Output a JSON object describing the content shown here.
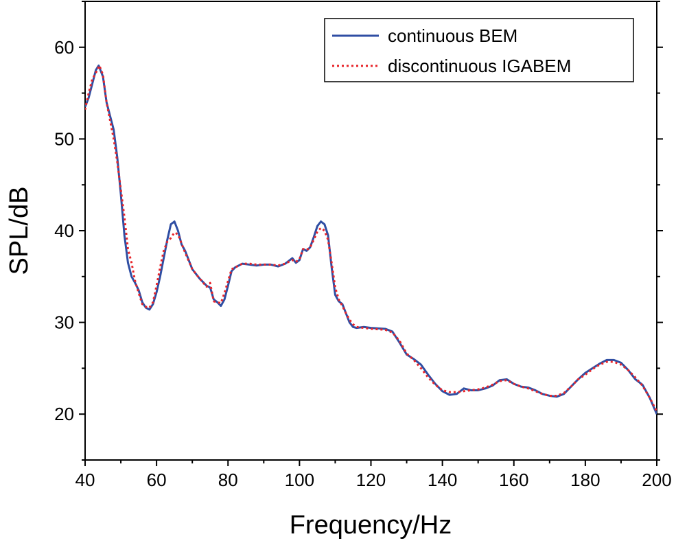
{
  "chart_data": {
    "type": "line",
    "title": "",
    "xlabel": "Frequency/Hz",
    "ylabel": "SPL/dB",
    "xlim": [
      40,
      200
    ],
    "ylim": [
      15,
      65
    ],
    "x_ticks": [
      40,
      60,
      80,
      100,
      120,
      140,
      160,
      180,
      200
    ],
    "y_ticks": [
      20,
      30,
      40,
      50,
      60
    ],
    "legend_position": "top-right",
    "grid": false,
    "series": [
      {
        "name": "continuous BEM",
        "color": "#2f4ea3",
        "style": "solid",
        "points": [
          [
            40,
            53.5
          ],
          [
            41,
            54.5
          ],
          [
            42,
            56
          ],
          [
            43,
            57.5
          ],
          [
            43.8,
            58
          ],
          [
            45,
            56.8
          ],
          [
            46,
            54
          ],
          [
            48,
            51
          ],
          [
            49,
            48
          ],
          [
            50,
            44
          ],
          [
            51,
            39.5
          ],
          [
            52,
            36.5
          ],
          [
            53,
            35
          ],
          [
            54,
            34.3
          ],
          [
            55,
            33.5
          ],
          [
            56,
            32.2
          ],
          [
            57,
            31.6
          ],
          [
            58,
            31.4
          ],
          [
            59,
            32
          ],
          [
            60,
            33.3
          ],
          [
            61,
            35
          ],
          [
            62,
            37
          ],
          [
            63,
            39
          ],
          [
            64,
            40.7
          ],
          [
            65,
            41
          ],
          [
            66,
            40
          ],
          [
            67,
            38.5
          ],
          [
            68,
            37.8
          ],
          [
            69,
            36.8
          ],
          [
            70,
            35.8
          ],
          [
            72,
            34.8
          ],
          [
            74,
            34
          ],
          [
            75,
            33.8
          ],
          [
            76,
            32.5
          ],
          [
            77,
            32.2
          ],
          [
            78,
            31.8
          ],
          [
            79,
            32.5
          ],
          [
            80,
            34
          ],
          [
            81,
            35.6
          ],
          [
            82,
            36
          ],
          [
            84,
            36.4
          ],
          [
            86,
            36.3
          ],
          [
            88,
            36.2
          ],
          [
            90,
            36.3
          ],
          [
            92,
            36.3
          ],
          [
            94,
            36.1
          ],
          [
            96,
            36.4
          ],
          [
            98,
            37
          ],
          [
            99,
            36.5
          ],
          [
            100,
            36.8
          ],
          [
            101,
            38
          ],
          [
            102,
            37.8
          ],
          [
            103,
            38.2
          ],
          [
            104,
            39.3
          ],
          [
            105,
            40.5
          ],
          [
            106,
            41
          ],
          [
            107,
            40.7
          ],
          [
            108,
            39.5
          ],
          [
            109,
            36
          ],
          [
            110,
            33
          ],
          [
            111,
            32.3
          ],
          [
            112,
            32
          ],
          [
            113,
            31
          ],
          [
            114,
            30
          ],
          [
            115,
            29.5
          ],
          [
            116,
            29.4
          ],
          [
            118,
            29.5
          ],
          [
            120,
            29.4
          ],
          [
            124,
            29.3
          ],
          [
            126,
            29
          ],
          [
            128,
            27.8
          ],
          [
            130,
            26.5
          ],
          [
            132,
            26
          ],
          [
            134,
            25.4
          ],
          [
            136,
            24.3
          ],
          [
            138,
            23.3
          ],
          [
            140,
            22.5
          ],
          [
            142,
            22.1
          ],
          [
            144,
            22.2
          ],
          [
            146,
            22.8
          ],
          [
            148,
            22.6
          ],
          [
            150,
            22.6
          ],
          [
            152,
            22.8
          ],
          [
            154,
            23.1
          ],
          [
            156,
            23.7
          ],
          [
            158,
            23.8
          ],
          [
            160,
            23.3
          ],
          [
            162,
            23
          ],
          [
            164,
            22.9
          ],
          [
            166,
            22.6
          ],
          [
            168,
            22.2
          ],
          [
            170,
            22
          ],
          [
            172,
            21.9
          ],
          [
            174,
            22.2
          ],
          [
            176,
            23
          ],
          [
            178,
            23.8
          ],
          [
            180,
            24.5
          ],
          [
            182,
            25
          ],
          [
            184,
            25.5
          ],
          [
            186,
            25.9
          ],
          [
            188,
            25.9
          ],
          [
            190,
            25.6
          ],
          [
            192,
            24.8
          ],
          [
            194,
            23.8
          ],
          [
            196,
            23.2
          ],
          [
            198,
            21.8
          ],
          [
            200,
            20
          ]
        ]
      },
      {
        "name": "discontinuous IGABEM",
        "color": "#e8252a",
        "style": "dotted",
        "points": [
          [
            40,
            53.2
          ],
          [
            41,
            55
          ],
          [
            42,
            56.5
          ],
          [
            43,
            57.2
          ],
          [
            44,
            58
          ],
          [
            45,
            57
          ],
          [
            46,
            54
          ],
          [
            47,
            52
          ],
          [
            48,
            50
          ],
          [
            49,
            47.5
          ],
          [
            50,
            44.5
          ],
          [
            51,
            41.5
          ],
          [
            52,
            38
          ],
          [
            53,
            36.5
          ],
          [
            54,
            34.5
          ],
          [
            55,
            33.2
          ],
          [
            56,
            32
          ],
          [
            57,
            31.7
          ],
          [
            58,
            31.6
          ],
          [
            59,
            32.2
          ],
          [
            60,
            34
          ],
          [
            61,
            36
          ],
          [
            62,
            37.8
          ],
          [
            63,
            38.8
          ],
          [
            64,
            39.2
          ],
          [
            65,
            39.8
          ],
          [
            66,
            39.6
          ],
          [
            67,
            38.6
          ],
          [
            68,
            37.6
          ],
          [
            70,
            35.8
          ],
          [
            72,
            34.8
          ],
          [
            74,
            33.9
          ],
          [
            75,
            34.3
          ],
          [
            76,
            32.3
          ],
          [
            77,
            32.2
          ],
          [
            78,
            32.1
          ],
          [
            79,
            33.2
          ],
          [
            80,
            34.5
          ],
          [
            81,
            35.8
          ],
          [
            82,
            36
          ],
          [
            84,
            36.4
          ],
          [
            86,
            36.4
          ],
          [
            88,
            36.3
          ],
          [
            90,
            36.3
          ],
          [
            92,
            36.3
          ],
          [
            94,
            36.2
          ],
          [
            96,
            36.4
          ],
          [
            98,
            36.8
          ],
          [
            99,
            36.6
          ],
          [
            100,
            36.9
          ],
          [
            101,
            38
          ],
          [
            102,
            37.9
          ],
          [
            103,
            38.2
          ],
          [
            104,
            39
          ],
          [
            105,
            39.9
          ],
          [
            106,
            40.3
          ],
          [
            107,
            40
          ],
          [
            108,
            39
          ],
          [
            109,
            36.5
          ],
          [
            110,
            33.8
          ],
          [
            111,
            32.5
          ],
          [
            112,
            31.8
          ],
          [
            113,
            31
          ],
          [
            114,
            30.3
          ],
          [
            115,
            29.8
          ],
          [
            116,
            29.5
          ],
          [
            118,
            29.4
          ],
          [
            120,
            29.3
          ],
          [
            124,
            29.2
          ],
          [
            126,
            28.9
          ],
          [
            128,
            28
          ],
          [
            130,
            26.6
          ],
          [
            132,
            25.9
          ],
          [
            134,
            25
          ],
          [
            136,
            24
          ],
          [
            138,
            23.2
          ],
          [
            140,
            22.6
          ],
          [
            142,
            22.4
          ],
          [
            144,
            22.4
          ],
          [
            146,
            22.5
          ],
          [
            148,
            22.6
          ],
          [
            150,
            22.7
          ],
          [
            152,
            22.9
          ],
          [
            154,
            23.2
          ],
          [
            156,
            23.6
          ],
          [
            158,
            23.7
          ],
          [
            160,
            23.3
          ],
          [
            162,
            23
          ],
          [
            164,
            22.8
          ],
          [
            166,
            22.5
          ],
          [
            168,
            22.2
          ],
          [
            170,
            22
          ],
          [
            172,
            22
          ],
          [
            174,
            22.3
          ],
          [
            176,
            23
          ],
          [
            178,
            23.8
          ],
          [
            180,
            24.3
          ],
          [
            182,
            24.9
          ],
          [
            184,
            25.4
          ],
          [
            186,
            25.7
          ],
          [
            188,
            25.7
          ],
          [
            190,
            25.4
          ],
          [
            192,
            24.8
          ],
          [
            194,
            24
          ],
          [
            196,
            23.1
          ],
          [
            198,
            21.8
          ],
          [
            200,
            20.3
          ]
        ]
      }
    ]
  }
}
